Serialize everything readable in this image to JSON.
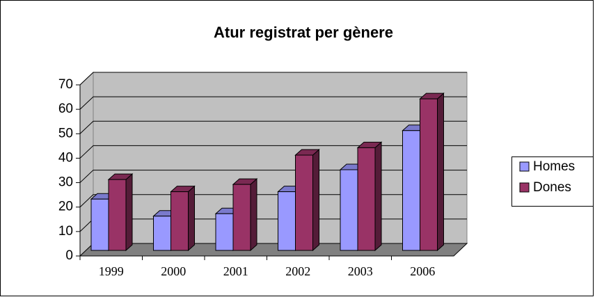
{
  "chart_data": {
    "type": "bar3d",
    "title": "Atur registrat per gènere",
    "categories": [
      "1999",
      "2000",
      "2001",
      "2002",
      "2003",
      "2006"
    ],
    "series": [
      {
        "name": "Homes",
        "color": "#9999ff",
        "values": [
          21,
          14,
          15,
          24,
          33,
          49
        ]
      },
      {
        "name": "Dones",
        "color": "#993366",
        "values": [
          29,
          24,
          27,
          39,
          42,
          62
        ]
      }
    ],
    "ylim": [
      0,
      70
    ],
    "yticks": [
      0,
      10,
      20,
      30,
      40,
      50,
      60,
      70
    ],
    "grid": true,
    "legend": "right"
  }
}
